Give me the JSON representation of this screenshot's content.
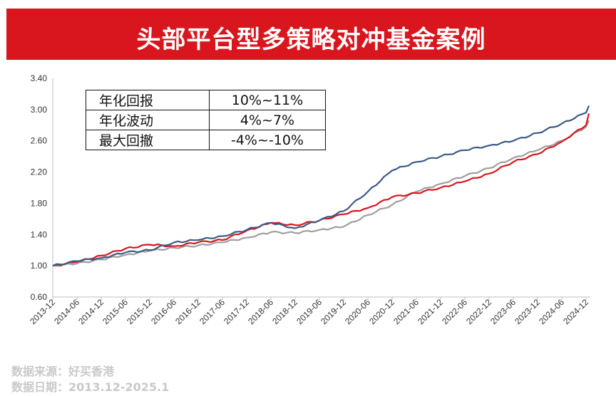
{
  "banner": {
    "title": "头部平台型多策略对冲基金案例"
  },
  "stats_table": {
    "rows": [
      {
        "label": "年化回报",
        "value": "10%~11%"
      },
      {
        "label": "年化波动",
        "value": "4%~7%"
      },
      {
        "label": "最大回撤",
        "value": "-4%~-10%"
      }
    ]
  },
  "footer": {
    "source": "数据来源：好买香港",
    "date": "数据日期：2013.12-2025.1"
  },
  "colors": {
    "banner": "#d9161e",
    "series_blue": "#3d5b85",
    "series_red": "#d9161e",
    "series_gray": "#9e9e9e"
  },
  "chart_data": {
    "type": "line",
    "title": "",
    "xlabel": "",
    "ylabel": "",
    "ylim": [
      0.6,
      3.4
    ],
    "yticks": [
      "0.60",
      "1.00",
      "1.40",
      "1.80",
      "2.20",
      "2.60",
      "3.00",
      "3.40"
    ],
    "grid": false,
    "legend": "none",
    "categories": [
      "2013-12",
      "2014-06",
      "2014-12",
      "2015-06",
      "2015-12",
      "2016-06",
      "2016-12",
      "2017-06",
      "2017-12",
      "2018-06",
      "2018-12",
      "2019-06",
      "2019-12",
      "2020-06",
      "2020-12",
      "2021-06",
      "2021-12",
      "2022-06",
      "2022-12",
      "2023-06",
      "2023-12",
      "2024-06",
      "2024-12"
    ],
    "series": [
      {
        "color": "#3d5b85",
        "values": [
          1.0,
          1.06,
          1.1,
          1.17,
          1.2,
          1.3,
          1.33,
          1.38,
          1.46,
          1.55,
          1.48,
          1.58,
          1.7,
          1.95,
          2.22,
          2.33,
          2.4,
          2.48,
          2.54,
          2.6,
          2.7,
          2.82,
          2.96
        ],
        "end_value": 3.05
      },
      {
        "color": "#d9161e",
        "values": [
          1.0,
          1.05,
          1.13,
          1.22,
          1.27,
          1.25,
          1.3,
          1.33,
          1.45,
          1.55,
          1.52,
          1.58,
          1.66,
          1.74,
          1.88,
          1.93,
          2.0,
          2.08,
          2.18,
          2.33,
          2.43,
          2.59,
          2.8
        ],
        "end_value": 2.95
      },
      {
        "color": "#9e9e9e",
        "values": [
          1.0,
          1.03,
          1.08,
          1.14,
          1.19,
          1.23,
          1.26,
          1.3,
          1.36,
          1.43,
          1.42,
          1.46,
          1.5,
          1.65,
          1.78,
          1.95,
          2.05,
          2.15,
          2.25,
          2.38,
          2.48,
          2.6,
          2.78
        ],
        "end_value": 2.86
      }
    ]
  }
}
